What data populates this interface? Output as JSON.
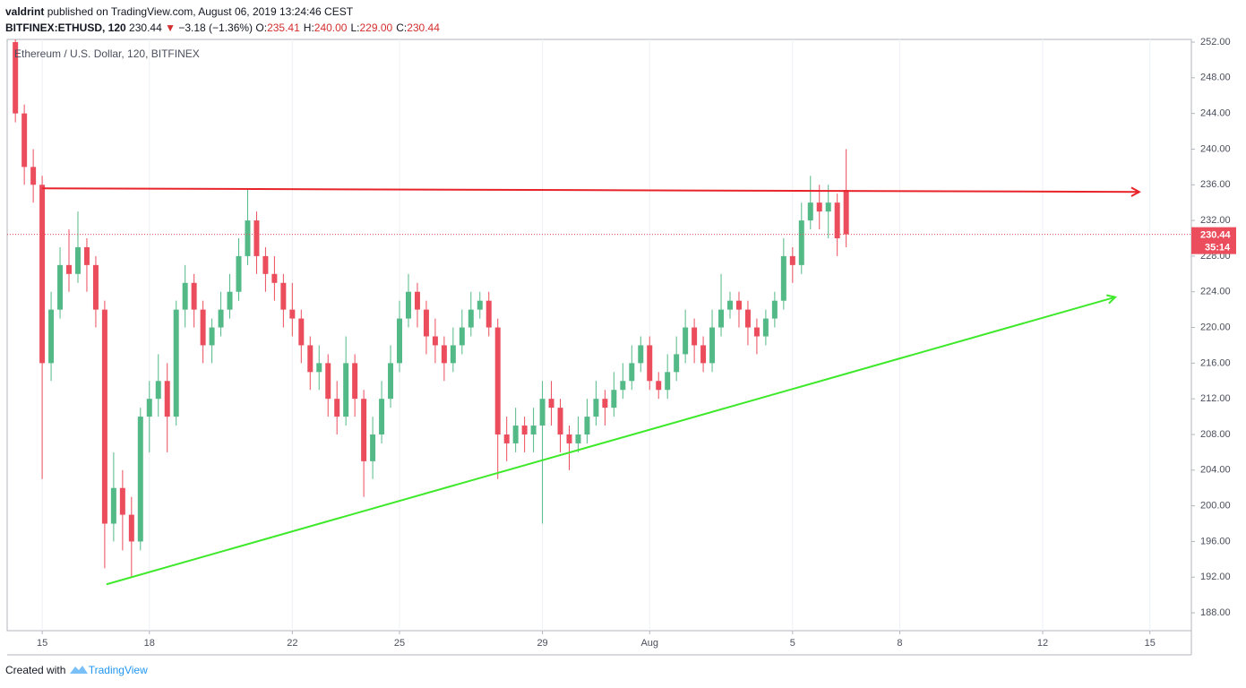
{
  "header": {
    "author": "valdrint",
    "published": "published on TradingView.com, August 06, 2019 13:24:46 CEST",
    "symbol": "BITFINEX:ETHUSD, 120",
    "last": "230.44",
    "change": "−3.18 (−1.36%)",
    "ohlc": [
      [
        "O:",
        "235.41"
      ],
      [
        "H:",
        "240.00"
      ],
      [
        "L:",
        "229.00"
      ],
      [
        "C:",
        "230.44"
      ]
    ]
  },
  "footer": {
    "created": "Created with",
    "brand": "TradingView"
  },
  "chart_data": {
    "type": "candlestick",
    "title": "Ethereum / U.S. Dollar, 120, BITFINEX",
    "up_color": "#53b987",
    "down_color": "#eb4d5c",
    "grid": true,
    "countdown": "35:14",
    "x": [
      14.25,
      14.5,
      14.75,
      15,
      15.25,
      15.5,
      15.75,
      16,
      16.25,
      16.5,
      16.75,
      17,
      17.25,
      17.5,
      17.75,
      18,
      18.25,
      18.5,
      18.75,
      19,
      19.25,
      19.5,
      19.75,
      20,
      20.25,
      20.5,
      20.75,
      21,
      21.25,
      21.5,
      21.75,
      22,
      22.25,
      22.5,
      22.75,
      23,
      23.25,
      23.5,
      23.75,
      24,
      24.25,
      24.5,
      24.75,
      25,
      25.25,
      25.5,
      25.75,
      26,
      26.25,
      26.5,
      26.75,
      27,
      27.25,
      27.5,
      27.75,
      28,
      28.25,
      28.5,
      28.75,
      29,
      29.25,
      29.5,
      29.75,
      30,
      30.25,
      30.5,
      30.75,
      31,
      31.25,
      31.5,
      31.75,
      32,
      32.25,
      32.5,
      32.75,
      33,
      33.25,
      33.5,
      33.75,
      34,
      34.25,
      34.5,
      34.75,
      35,
      35.25,
      35.5,
      35.75,
      36,
      36.25,
      36.5,
      36.75,
      37,
      37.25,
      37.5
    ],
    "open": [
      252,
      244,
      238,
      236,
      216,
      222,
      227,
      226,
      229,
      227,
      222,
      198,
      202,
      199,
      196,
      210,
      212,
      214,
      210,
      222,
      225,
      222,
      218,
      220,
      222,
      224,
      228,
      232,
      228,
      226,
      225,
      222,
      221,
      218,
      215,
      216,
      212,
      210,
      216,
      212,
      205,
      208,
      212,
      216,
      221,
      224,
      222,
      219,
      218,
      216,
      218,
      220,
      222,
      223,
      220,
      208,
      207,
      209,
      208,
      209,
      212,
      211,
      208,
      207,
      208,
      210,
      212,
      211,
      213,
      214,
      216,
      218,
      214,
      213,
      215,
      217,
      220,
      218,
      216,
      220,
      222,
      223,
      222,
      220,
      219,
      221,
      223,
      228,
      227,
      232,
      234,
      233,
      234,
      235.41
    ],
    "high": [
      253,
      245,
      240,
      237,
      224,
      229,
      231,
      233,
      230,
      228,
      223,
      206,
      204,
      201,
      211,
      214,
      217,
      216,
      223,
      227,
      226,
      223,
      221,
      224,
      226,
      230,
      235.5,
      233,
      229,
      228,
      226,
      225,
      222,
      219,
      218,
      217,
      214,
      219,
      217,
      213,
      210,
      214,
      218,
      223,
      226,
      225,
      223,
      221,
      219,
      220,
      222,
      224,
      224,
      224,
      221,
      210,
      211,
      210,
      211,
      214,
      214,
      212,
      209,
      210,
      212,
      214,
      213,
      215,
      216,
      218,
      219,
      219,
      215,
      217,
      219,
      222,
      221,
      219,
      222,
      226,
      224,
      224,
      223,
      221,
      222,
      224,
      230,
      229,
      234,
      237,
      236,
      236,
      235,
      240
    ],
    "low": [
      243,
      236,
      234,
      203,
      214,
      221,
      224,
      225,
      224,
      220,
      193,
      196,
      195,
      192,
      195,
      206,
      210,
      206,
      209,
      220,
      220,
      216,
      216,
      219,
      221,
      223,
      227,
      226,
      224,
      223,
      220,
      219,
      216,
      213,
      213,
      210,
      208,
      209,
      210,
      201,
      203,
      207,
      211,
      215,
      220,
      220,
      217,
      216,
      214,
      215,
      217,
      219,
      221,
      219,
      203,
      205,
      206,
      206,
      206,
      198,
      209,
      206,
      204,
      206,
      207,
      209,
      209,
      210,
      212,
      213,
      215,
      213,
      212,
      212,
      214,
      216,
      216,
      215,
      215,
      219,
      221,
      220,
      218,
      217,
      218,
      220,
      222,
      225,
      226,
      231,
      231,
      230,
      228,
      229
    ],
    "close": [
      244,
      238,
      236,
      216,
      222,
      227,
      226,
      229,
      227,
      222,
      198,
      202,
      199,
      196,
      210,
      212,
      214,
      210,
      222,
      225,
      222,
      218,
      220,
      222,
      224,
      228,
      232,
      228,
      226,
      225,
      222,
      221,
      218,
      215,
      216,
      212,
      210,
      216,
      212,
      205,
      208,
      212,
      216,
      221,
      224,
      222,
      219,
      218,
      216,
      218,
      220,
      222,
      223,
      220,
      208,
      207,
      209,
      208,
      209,
      212,
      211,
      208,
      207,
      208,
      210,
      212,
      211,
      213,
      214,
      216,
      218,
      214,
      213,
      215,
      217,
      220,
      218,
      216,
      220,
      222,
      223,
      222,
      220,
      219,
      221,
      223,
      228,
      227,
      232,
      234,
      233,
      234,
      230,
      230.44
    ],
    "trendlines": [
      {
        "color": "#e8242a",
        "points": [
          [
            15.0,
            235.6
          ],
          [
            45.7,
            235.2
          ]
        ]
      },
      {
        "color": "#3ee82a",
        "points": [
          [
            16.8,
            191.2
          ],
          [
            45.03,
            223.4
          ]
        ]
      }
    ],
    "xlim": [
      14.02,
      47.16
    ],
    "ylim": [
      186,
      252.3
    ],
    "xticks": [
      15,
      18,
      22,
      25,
      29,
      {
        "value": 32,
        "label": "Aug"
      },
      {
        "value": 36,
        "label": "5"
      },
      {
        "value": 39,
        "label": "8"
      },
      {
        "value": 43,
        "label": "12"
      },
      {
        "value": 46,
        "label": "15"
      }
    ],
    "yticks": [
      {
        "value": 188,
        "label": "188.00"
      },
      {
        "value": 192,
        "label": "192.00"
      },
      {
        "value": 196,
        "label": "196.00"
      },
      {
        "value": 200,
        "label": "200.00"
      },
      {
        "value": 204,
        "label": "204.00"
      },
      {
        "value": 208,
        "label": "208.00"
      },
      {
        "value": 212,
        "label": "212.00"
      },
      {
        "value": 216,
        "label": "216.00"
      },
      {
        "value": 220,
        "label": "220.00"
      },
      {
        "value": 224,
        "label": "224.00"
      },
      {
        "value": 228,
        "label": "228.00"
      },
      {
        "value": 232,
        "label": "232.00"
      },
      {
        "value": 236,
        "label": "236.00"
      },
      {
        "value": 240,
        "label": "240.00"
      },
      {
        "value": 244,
        "label": "244.00"
      },
      {
        "value": 248,
        "label": "248.00"
      },
      {
        "value": 252,
        "label": "252.00"
      }
    ]
  }
}
